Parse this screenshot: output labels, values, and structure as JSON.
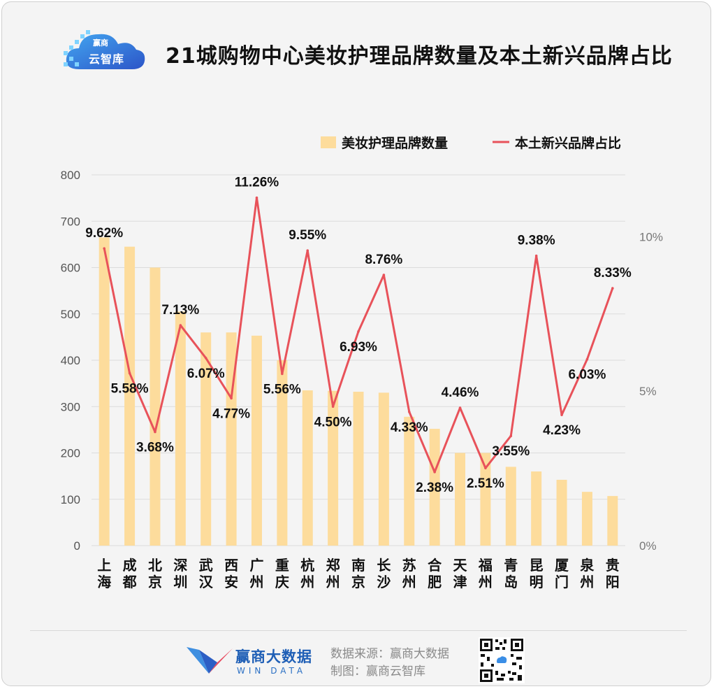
{
  "header": {
    "logo_text": "云智库",
    "logo_sub": "赢商",
    "title": "21城购物中心美妆护理品牌数量及本土新兴品牌占比"
  },
  "footer": {
    "brand_cn": "赢商大数据",
    "brand_en": "WIN DATA",
    "source": "数据来源：赢商大数据",
    "made_by": "制图：赢商云智库"
  },
  "colors": {
    "bar": "#fddc9c",
    "line": "#e8525a",
    "grid": "#dcdcdc",
    "axis_text": "#555555",
    "label_text": "#111111"
  },
  "chart_data": {
    "type": "bar+line",
    "title": "21城购物中心美妆护理品牌数量及本土新兴品牌占比",
    "categories": [
      "上海",
      "成都",
      "北京",
      "深圳",
      "武汉",
      "西安",
      "广州",
      "重庆",
      "杭州",
      "郑州",
      "南京",
      "长沙",
      "苏州",
      "合肥",
      "天津",
      "福州",
      "青岛",
      "昆明",
      "厦门",
      "泉州",
      "贵阳"
    ],
    "legend": [
      "美妆护理品牌数量",
      "本土新兴品牌占比"
    ],
    "legend_position": "top-right",
    "series": [
      {
        "name": "美妆护理品牌数量",
        "type": "bar",
        "axis": "left",
        "values": [
          665,
          645,
          600,
          505,
          460,
          460,
          453,
          400,
          335,
          334,
          332,
          330,
          278,
          252,
          200,
          200,
          170,
          160,
          142,
          116,
          107
        ]
      },
      {
        "name": "本土新兴品牌占比",
        "type": "line",
        "axis": "right",
        "values": [
          9.62,
          5.58,
          3.68,
          7.13,
          6.07,
          4.77,
          11.26,
          5.56,
          9.55,
          4.5,
          6.93,
          8.76,
          4.33,
          2.38,
          4.46,
          2.51,
          3.55,
          9.38,
          4.23,
          6.03,
          8.33
        ],
        "labels": [
          "9.62%",
          "5.58%",
          "3.68%",
          "7.13%",
          "6.07%",
          "4.77%",
          "11.26%",
          "5.56%",
          "9.55%",
          "4.50%",
          "6.93%",
          "8.76%",
          "4.33%",
          "2.38%",
          "4.46%",
          "2.51%",
          "3.55%",
          "9.38%",
          "4.23%",
          "6.03%",
          "8.33%"
        ]
      }
    ],
    "y_left": {
      "ylim": [
        0,
        800
      ],
      "ticks": [
        "0",
        "100",
        "200",
        "300",
        "400",
        "500",
        "600",
        "700",
        "800"
      ]
    },
    "y_right": {
      "ylim": [
        0,
        12
      ],
      "ticks": [
        {
          "value": 0,
          "label": "0%"
        },
        {
          "value": 5,
          "label": "5%"
        },
        {
          "value": 10,
          "label": "10%"
        }
      ]
    },
    "grid": true
  }
}
